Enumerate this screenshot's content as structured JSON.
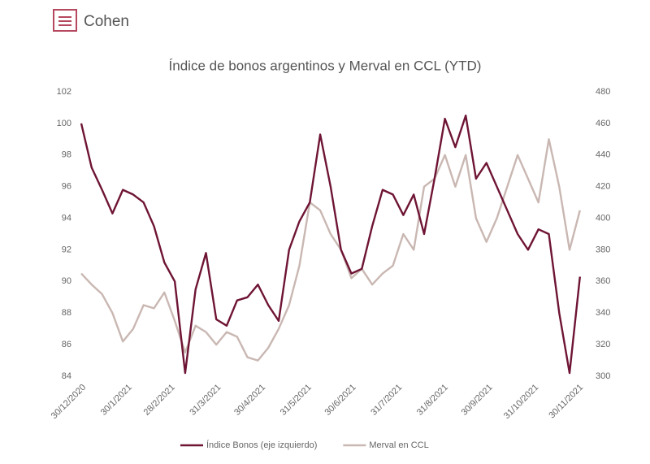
{
  "brand": "Cohen",
  "chart_data": {
    "type": "line",
    "title": "Índice de bonos argentinos y Merval en CCL (YTD)",
    "x": [
      "30/12/2020",
      "6/1/2021",
      "13/1/2021",
      "20/1/2021",
      "27/1/2021",
      "3/2/2021",
      "10/2/2021",
      "17/2/2021",
      "24/2/2021",
      "3/3/2021",
      "10/3/2021",
      "17/3/2021",
      "24/3/2021",
      "31/3/2021",
      "7/4/2021",
      "14/4/2021",
      "21/4/2021",
      "28/4/2021",
      "5/5/2021",
      "12/5/2021",
      "19/5/2021",
      "26/5/2021",
      "2/6/2021",
      "9/6/2021",
      "16/6/2021",
      "23/6/2021",
      "30/6/2021",
      "7/7/2021",
      "14/7/2021",
      "21/7/2021",
      "28/7/2021",
      "4/8/2021",
      "11/8/2021",
      "18/8/2021",
      "25/8/2021",
      "1/9/2021",
      "8/9/2021",
      "15/9/2021",
      "22/9/2021",
      "29/9/2021",
      "6/10/2021",
      "13/10/2021",
      "20/10/2021",
      "27/10/2021",
      "3/11/2021",
      "10/11/2021",
      "17/11/2021",
      "24/11/2021",
      "1/12/2021"
    ],
    "xticks": [
      "30/12/2020",
      "30/1/2021",
      "28/2/2021",
      "31/3/2021",
      "30/4/2021",
      "31/5/2021",
      "30/6/2021",
      "31/7/2021",
      "31/8/2021",
      "30/9/2021",
      "31/10/2021",
      "30/11/2021"
    ],
    "ylim": [
      84,
      102
    ],
    "yticks": [
      84,
      86,
      88,
      90,
      92,
      94,
      96,
      98,
      100,
      102
    ],
    "y2lim": [
      300,
      480
    ],
    "y2ticks": [
      300,
      320,
      340,
      360,
      380,
      400,
      420,
      440,
      460,
      480
    ],
    "legend": "bottom",
    "series": [
      {
        "name": "Índice Bonos (eje izquierdo)",
        "color": "#6e1434",
        "axis": "y",
        "values": [
          100,
          97.2,
          95.8,
          94.3,
          95.8,
          95.5,
          95,
          93.5,
          91.2,
          90,
          84.2,
          89.5,
          91.8,
          87.6,
          87.2,
          88.8,
          89,
          89.8,
          88.5,
          87.5,
          92,
          93.8,
          95,
          99.3,
          96,
          92,
          90.5,
          90.8,
          93.5,
          95.8,
          95.5,
          94.2,
          95.5,
          93,
          96.5,
          100.3,
          98.5,
          100.5,
          96.5,
          97.5,
          96,
          94.5,
          93,
          92,
          93.3,
          93,
          88,
          84.2,
          90.3
        ]
      },
      {
        "name": "Merval en CCL",
        "color": "#c9b7b2",
        "axis": "y2",
        "values": [
          365,
          358,
          352,
          340,
          322,
          330,
          345,
          343,
          353,
          335,
          315,
          332,
          328,
          320,
          328,
          325,
          312,
          310,
          318,
          330,
          345,
          370,
          410,
          405,
          390,
          380,
          362,
          368,
          358,
          365,
          370,
          390,
          380,
          420,
          425,
          440,
          420,
          440,
          400,
          385,
          400,
          420,
          440,
          425,
          410,
          450,
          420,
          380,
          405
        ]
      }
    ]
  }
}
